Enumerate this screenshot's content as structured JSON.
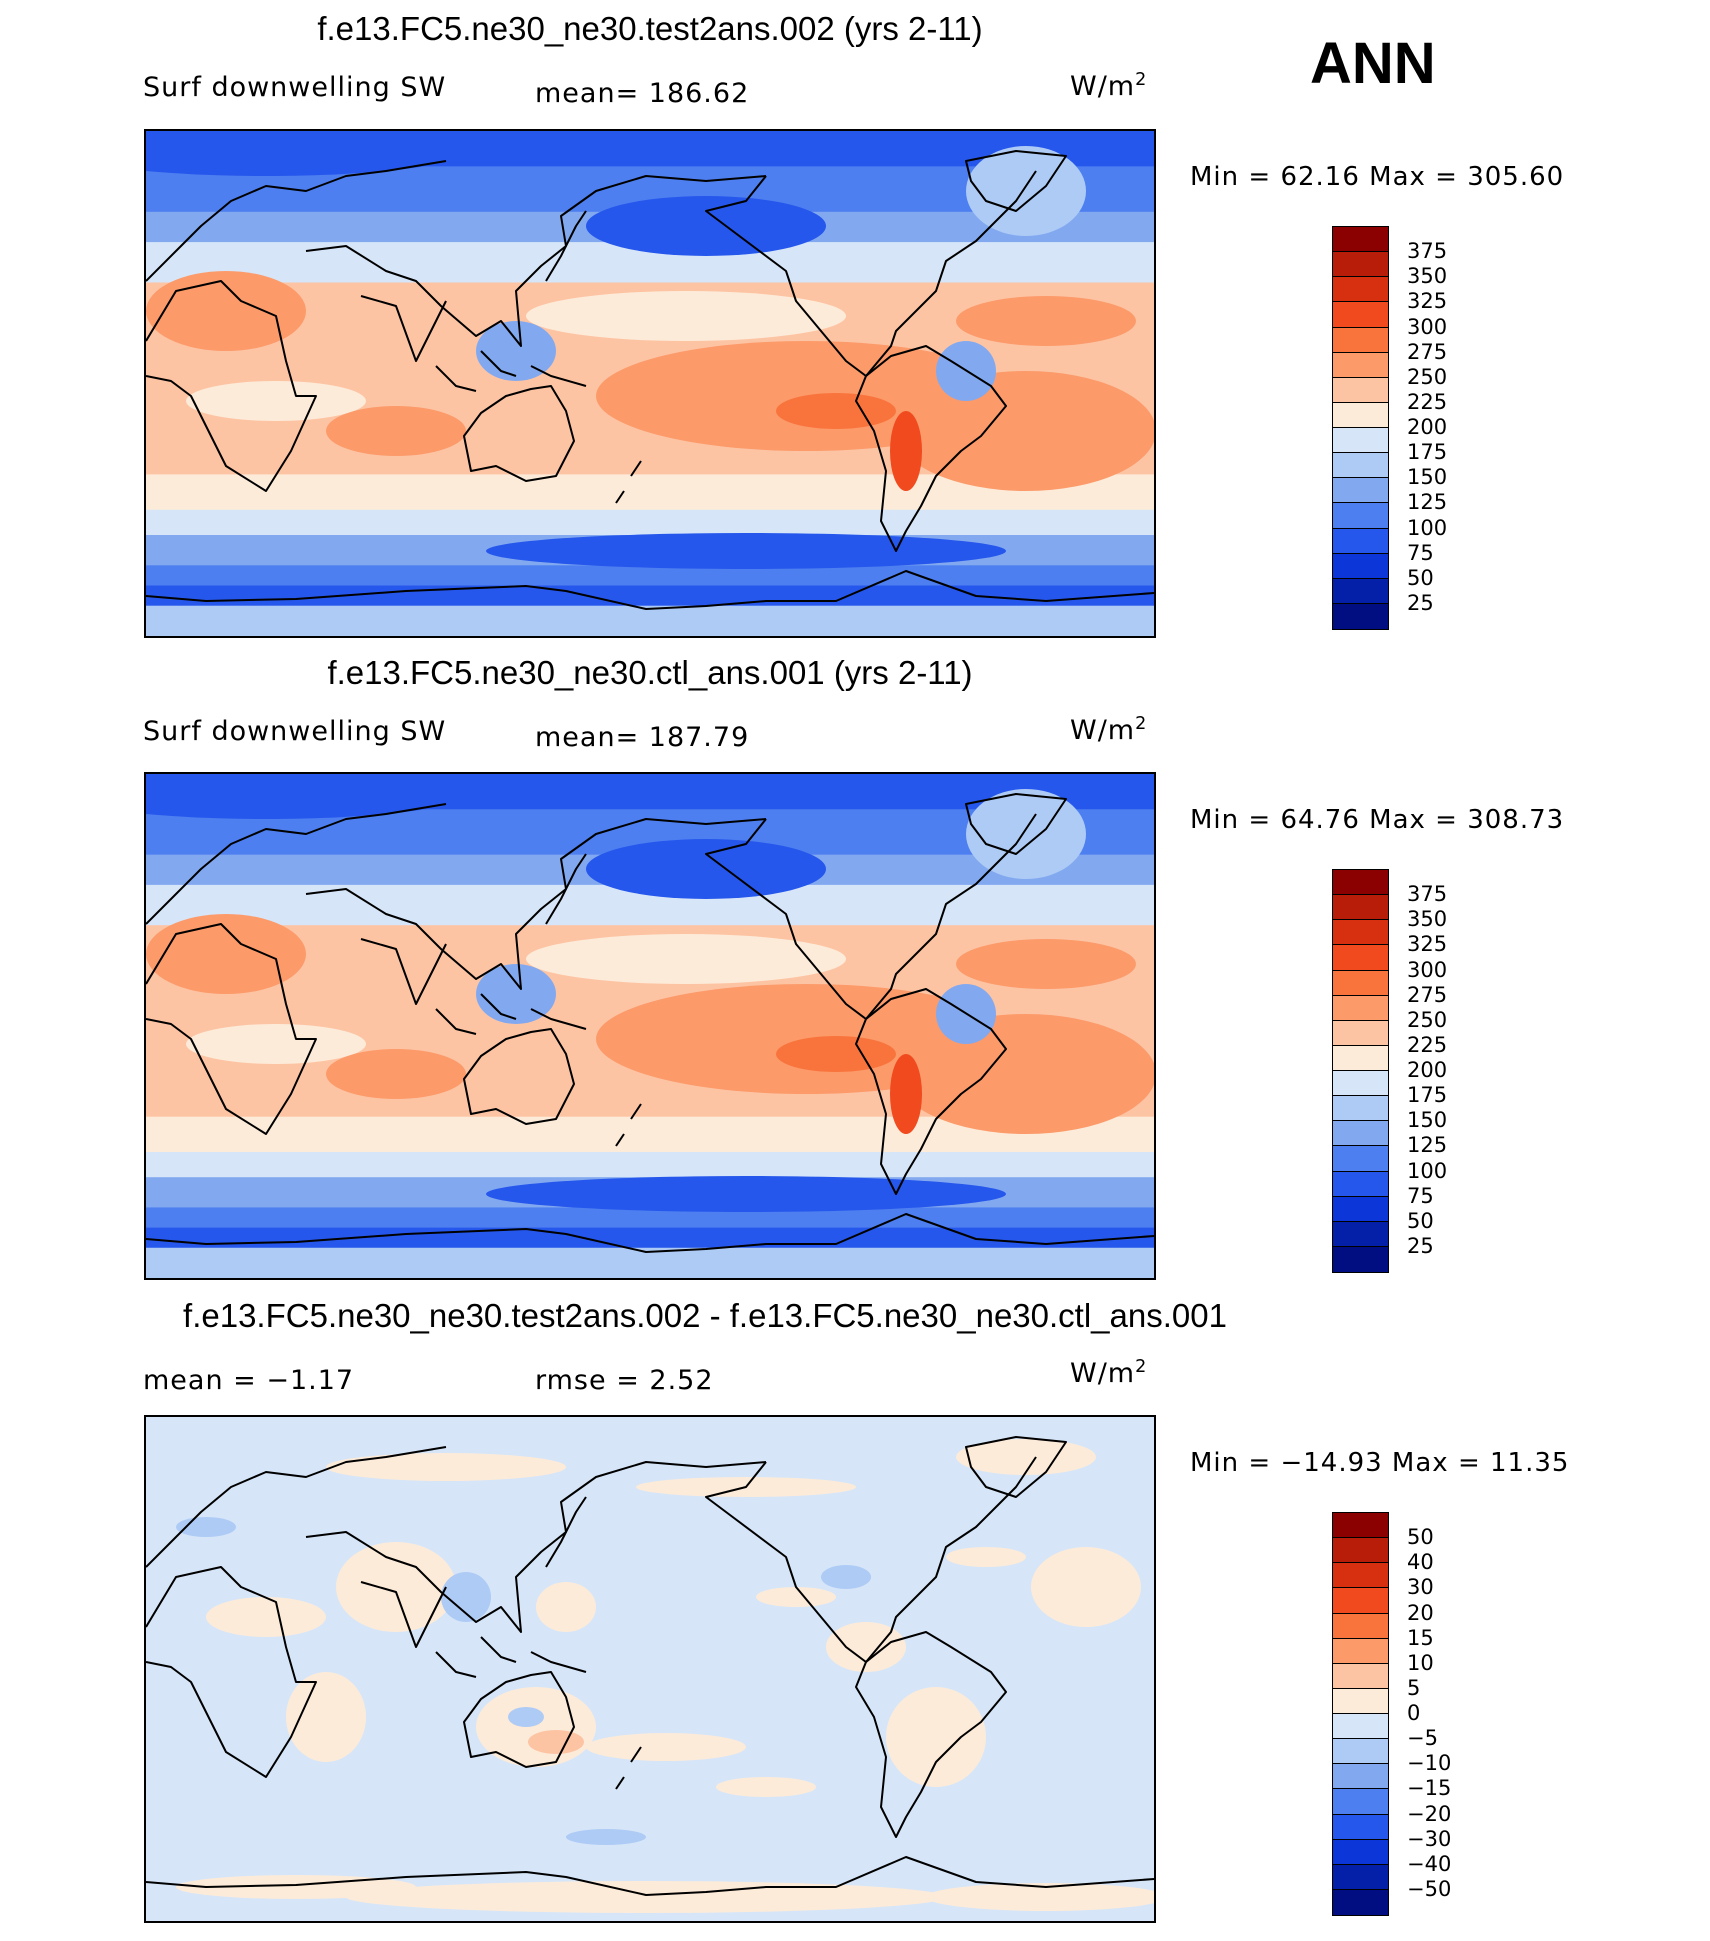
{
  "season": "ANN",
  "panels": [
    {
      "title": "f.e13.FC5.ne30_ne30.test2ans.002 (yrs 2-11)",
      "variable": "Surf downwelling SW",
      "stat_text": "mean=  186.62",
      "units": "W/m",
      "units_exp": "2",
      "minmax": "Min =   62.16  Max  =  305.60",
      "colorbar_labels": [
        "375",
        "350",
        "325",
        "300",
        "275",
        "250",
        "225",
        "200",
        "175",
        "150",
        "125",
        "100",
        "75",
        "50",
        "25"
      ]
    },
    {
      "title": "f.e13.FC5.ne30_ne30.ctl_ans.001 (yrs 2-11)",
      "variable": "Surf downwelling SW",
      "stat_text": "mean=  187.79",
      "units": "W/m",
      "units_exp": "2",
      "minmax": "Min =   64.76  Max  =  308.73",
      "colorbar_labels": [
        "375",
        "350",
        "325",
        "300",
        "275",
        "250",
        "225",
        "200",
        "175",
        "150",
        "125",
        "100",
        "75",
        "50",
        "25"
      ]
    },
    {
      "title": "f.e13.FC5.ne30_ne30.test2ans.002 - f.e13.FC5.ne30_ne30.ctl_ans.001",
      "variable": "mean =   −1.17",
      "stat_text": "rmse =     2.52",
      "units": "W/m",
      "units_exp": "2",
      "minmax": "Min  =  −14.93  Max  =    11.35",
      "colorbar_labels": [
        "50",
        "40",
        "30",
        "20",
        "15",
        "10",
        "5",
        "0",
        "−5",
        "−10",
        "−15",
        "−20",
        "−30",
        "−40",
        "−50"
      ]
    }
  ],
  "colors": {
    "scale": [
      "#8b0000",
      "#b81d0a",
      "#d63010",
      "#f04a1e",
      "#f9743c",
      "#fc9a6a",
      "#fdc4a4",
      "#fdebd9",
      "#d6e6f8",
      "#aecbf5",
      "#82a9f0",
      "#4d7ff0",
      "#2657ec",
      "#0d36d8",
      "#0520a8",
      "#000e82"
    ],
    "land_outline": "#000000"
  },
  "chart_data": [
    {
      "type": "heatmap",
      "title": "f.e13.FC5.ne30_ne30.test2ans.002 (yrs 2-11)",
      "variable": "Surf downwelling SW",
      "units": "W/m2",
      "mean": 186.62,
      "min": 62.16,
      "max": 305.6,
      "levels": [
        25,
        50,
        75,
        100,
        125,
        150,
        175,
        200,
        225,
        250,
        275,
        300,
        325,
        350,
        375
      ],
      "latitude_bands_approx": [
        {
          "lat": 75,
          "value": 90
        },
        {
          "lat": 55,
          "value": 110
        },
        {
          "lat": 35,
          "value": 190
        },
        {
          "lat": 20,
          "value": 240
        },
        {
          "lat": 0,
          "value": 235
        },
        {
          "lat": -20,
          "value": 245
        },
        {
          "lat": -40,
          "value": 160
        },
        {
          "lat": -55,
          "value": 100
        },
        {
          "lat": -75,
          "value": 120
        }
      ]
    },
    {
      "type": "heatmap",
      "title": "f.e13.FC5.ne30_ne30.ctl_ans.001 (yrs 2-11)",
      "variable": "Surf downwelling SW",
      "units": "W/m2",
      "mean": 187.79,
      "min": 64.76,
      "max": 308.73,
      "levels": [
        25,
        50,
        75,
        100,
        125,
        150,
        175,
        200,
        225,
        250,
        275,
        300,
        325,
        350,
        375
      ],
      "latitude_bands_approx": [
        {
          "lat": 75,
          "value": 90
        },
        {
          "lat": 55,
          "value": 110
        },
        {
          "lat": 35,
          "value": 190
        },
        {
          "lat": 20,
          "value": 240
        },
        {
          "lat": 0,
          "value": 235
        },
        {
          "lat": -20,
          "value": 245
        },
        {
          "lat": -40,
          "value": 160
        },
        {
          "lat": -55,
          "value": 100
        },
        {
          "lat": -75,
          "value": 120
        }
      ]
    },
    {
      "type": "heatmap",
      "title": "f.e13.FC5.ne30_ne30.test2ans.002 - f.e13.FC5.ne30_ne30.ctl_ans.001",
      "units": "W/m2",
      "mean": -1.17,
      "rmse": 2.52,
      "min": -14.93,
      "max": 11.35,
      "levels": [
        -50,
        -40,
        -30,
        -20,
        -15,
        -10,
        -5,
        0,
        5,
        10,
        15,
        20,
        30,
        40,
        50
      ],
      "latitude_bands_approx": [
        {
          "lat": 75,
          "value": -2
        },
        {
          "lat": 40,
          "value": -2
        },
        {
          "lat": 0,
          "value": -2
        },
        {
          "lat": -25,
          "value": 2
        },
        {
          "lat": -60,
          "value": -2
        },
        {
          "lat": -75,
          "value": 2
        }
      ]
    }
  ]
}
